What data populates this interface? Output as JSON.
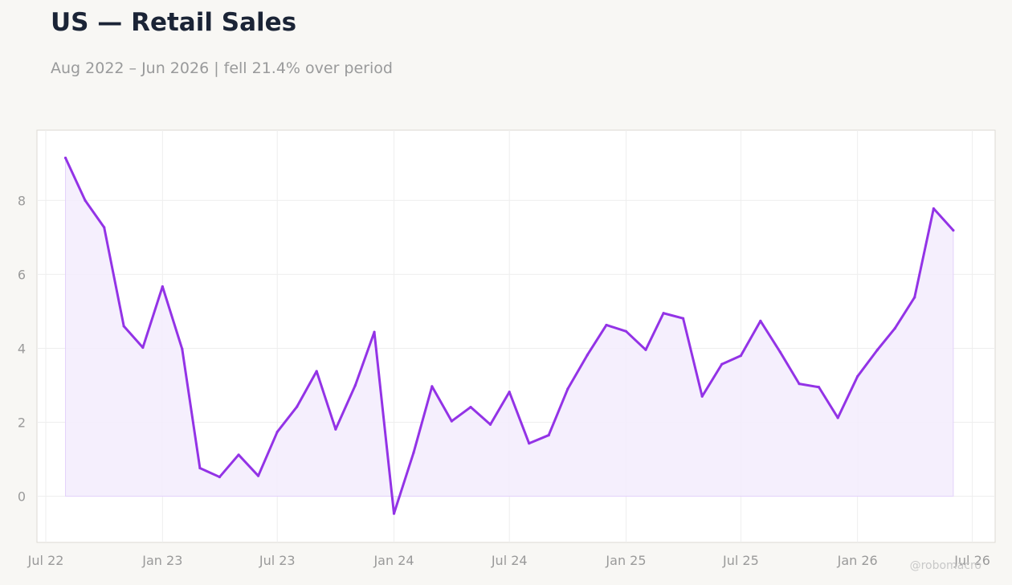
{
  "header": {
    "title": "US — Retail Sales",
    "subtitle": "Aug 2022 – Jun 2026 | fell 21.4% over period"
  },
  "watermark": "@robomacro",
  "colors": {
    "line": "#9333e6",
    "fill": "#f3ecfd",
    "grid": "#eeeeee",
    "frame": "#dcdad3",
    "plot_bg": "#ffffff",
    "page_bg": "#f8f7f4",
    "tick_text": "#9a9a9a"
  },
  "chart_data": {
    "type": "area",
    "title": "US — Retail Sales",
    "subtitle": "Aug 2022 – Jun 2026 | fell 21.4% over period",
    "xlabel": "",
    "ylabel": "",
    "ylim": [
      -1.25,
      9.9
    ],
    "xlim": [
      "2022-06-17",
      "2026-08-06"
    ],
    "grid": true,
    "legend": "none",
    "x_ticks": [
      {
        "date": "2022-07-01",
        "label": "Jul 22"
      },
      {
        "date": "2023-01-01",
        "label": "Jan 23"
      },
      {
        "date": "2023-07-01",
        "label": "Jul 23"
      },
      {
        "date": "2024-01-01",
        "label": "Jan 24"
      },
      {
        "date": "2024-07-01",
        "label": "Jul 24"
      },
      {
        "date": "2025-01-01",
        "label": "Jan 25"
      },
      {
        "date": "2025-07-01",
        "label": "Jul 25"
      },
      {
        "date": "2026-01-01",
        "label": "Jan 26"
      },
      {
        "date": "2026-07-01",
        "label": "Jul 26"
      }
    ],
    "y_ticks": [
      0,
      2,
      4,
      6,
      8
    ],
    "series": [
      {
        "x": [
          "2022-08-01",
          "2022-09-01",
          "2022-10-01",
          "2022-11-01",
          "2022-12-01",
          "2023-01-01",
          "2023-02-01",
          "2023-03-01",
          "2023-04-01",
          "2023-05-01",
          "2023-06-01",
          "2023-07-01",
          "2023-08-01",
          "2023-09-01",
          "2023-10-01",
          "2023-11-01",
          "2023-12-01",
          "2024-01-01",
          "2024-02-01",
          "2024-03-01",
          "2024-04-01",
          "2024-05-01",
          "2024-06-01",
          "2024-07-01",
          "2024-08-01",
          "2024-09-01",
          "2024-10-01",
          "2024-11-01",
          "2024-12-01",
          "2025-01-01",
          "2025-02-01",
          "2025-03-01",
          "2025-04-01",
          "2025-05-01",
          "2025-06-01",
          "2025-07-01",
          "2025-08-01",
          "2025-09-01",
          "2025-10-01",
          "2025-11-01",
          "2025-12-01",
          "2026-01-01",
          "2026-02-01",
          "2026-03-01",
          "2026-04-01",
          "2026-05-01",
          "2026-06-01"
        ],
        "values": [
          9.15,
          8.0,
          7.27,
          4.6,
          4.02,
          5.67,
          3.98,
          0.76,
          0.52,
          1.12,
          0.55,
          1.74,
          2.42,
          3.38,
          1.81,
          3.0,
          4.44,
          -0.47,
          1.18,
          2.97,
          2.03,
          2.41,
          1.94,
          2.82,
          1.43,
          1.65,
          2.9,
          3.82,
          4.63,
          4.46,
          3.96,
          4.95,
          4.81,
          2.7,
          3.57,
          3.8,
          4.74,
          3.9,
          3.04,
          2.95,
          2.12,
          3.24,
          3.95,
          4.54,
          5.38,
          7.78,
          7.19
        ]
      }
    ]
  }
}
